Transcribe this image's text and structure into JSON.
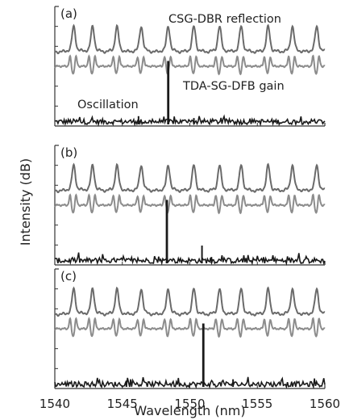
{
  "chart_data": {
    "type": "line",
    "xlabel": "Wavelength (nm)",
    "ylabel": "Intensity (dB)",
    "xlim": [
      1540,
      1560
    ],
    "x_ticks": [
      1540,
      1545,
      1550,
      1555,
      1560
    ],
    "grid": false,
    "colors": {
      "reflection": "#6a6a6a",
      "gain": "#8c8c8c",
      "oscillation": "#1a1a1a"
    },
    "reflection_peaks_nm": [
      1541.4,
      1542.8,
      1544.6,
      1546.4,
      1548.4,
      1550.3,
      1552.2,
      1553.8,
      1555.8,
      1557.6,
      1559.4
    ],
    "panels": [
      {
        "label": "(a)",
        "annotations": [
          {
            "text": "CSG-DBR reflection",
            "series": "reflection"
          },
          {
            "text": "TDA-SG-DFB gain",
            "series": "gain"
          },
          {
            "text": "Oscillation",
            "series": "oscillation"
          }
        ],
        "lasing_peaks": [
          {
            "x": 1548.4,
            "height": 1.0
          },
          {
            "x": 1546.2,
            "height": 0.13
          },
          {
            "x": 1550.3,
            "height": 0.1
          }
        ]
      },
      {
        "label": "(b)",
        "annotations": [],
        "lasing_peaks": [
          {
            "x": 1548.3,
            "height": 1.0
          },
          {
            "x": 1550.9,
            "height": 0.28
          },
          {
            "x": 1551.6,
            "height": 0.1
          }
        ]
      },
      {
        "label": "(c)",
        "annotations": [],
        "lasing_peaks": [
          {
            "x": 1551.0,
            "height": 1.0
          },
          {
            "x": 1553.2,
            "height": 0.12
          },
          {
            "x": 1545.3,
            "height": 0.1
          }
        ]
      }
    ]
  }
}
